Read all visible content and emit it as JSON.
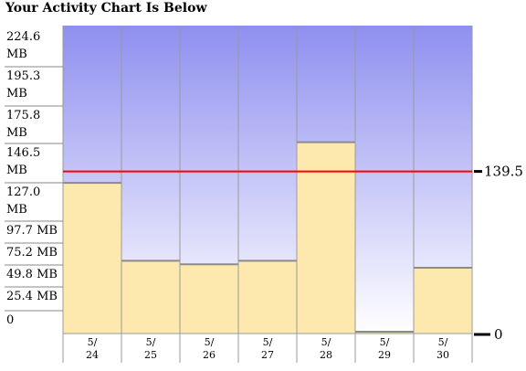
{
  "chart_data": {
    "type": "bar",
    "title": "Your Activity Chart Is Below",
    "categories": [
      [
        "5/",
        "24"
      ],
      [
        "5/",
        "25"
      ],
      [
        "5/",
        "26"
      ],
      [
        "5/",
        "27"
      ],
      [
        "5/",
        "28"
      ],
      [
        "5/",
        "29"
      ],
      [
        "5/",
        "30"
      ]
    ],
    "values": [
      130,
      63,
      60,
      63,
      165,
      2,
      57
    ],
    "ylim": [
      0,
      265
    ],
    "y_ticks": [
      {
        "value": 224.6,
        "lines": [
          "224.6",
          "MB"
        ]
      },
      {
        "value": 195.3,
        "lines": [
          "195.3",
          "MB"
        ]
      },
      {
        "value": 175.8,
        "lines": [
          "175.8",
          "MB"
        ]
      },
      {
        "value": 146.5,
        "lines": [
          "146.5",
          "MB"
        ]
      },
      {
        "value": 127.0,
        "lines": [
          "127.0",
          "MB"
        ]
      },
      {
        "value": 97.7,
        "lines": [
          "97.7 MB"
        ]
      },
      {
        "value": 75.2,
        "lines": [
          "75.2 MB"
        ]
      },
      {
        "value": 49.8,
        "lines": [
          "49.8 MB"
        ]
      },
      {
        "value": 25.4,
        "lines": [
          "25.4 MB"
        ]
      },
      {
        "value": 0,
        "lines": [
          "0"
        ]
      }
    ],
    "reference_line": {
      "value": 139.5,
      "label": "139.5",
      "color": "#ff0000"
    },
    "zero_label": "0",
    "colors": {
      "bar_fill": "#fde9ad",
      "bg_top": "#8f8ff0",
      "bg_bottom": "#ffffff",
      "grid": "#9a9a9a"
    }
  }
}
